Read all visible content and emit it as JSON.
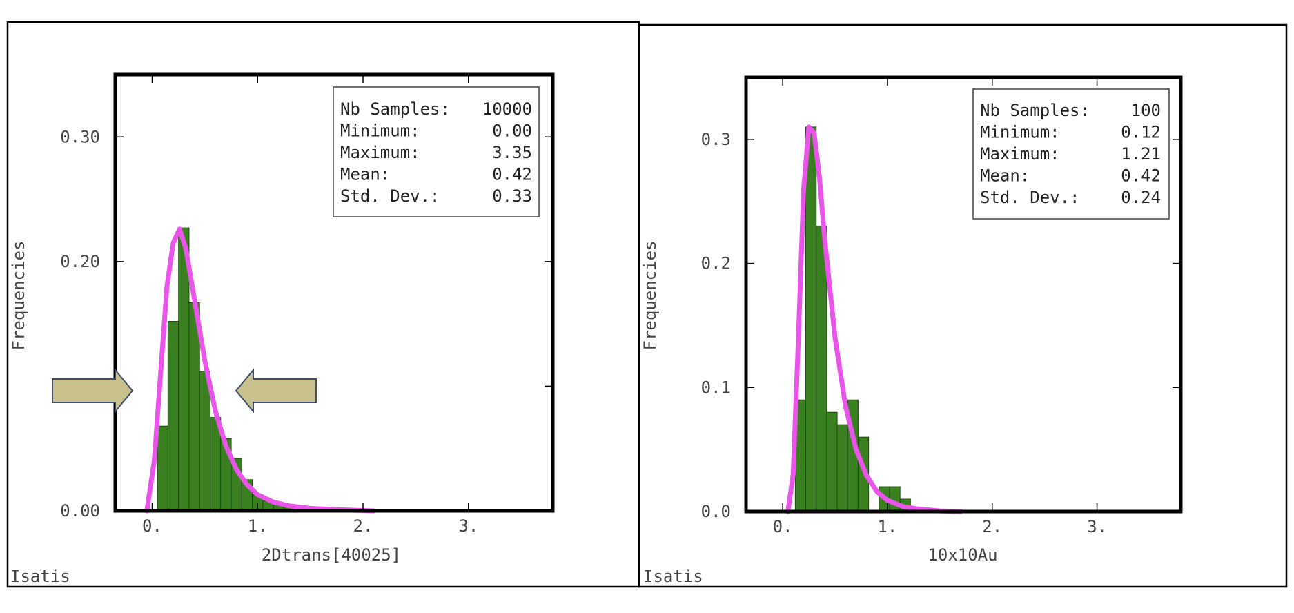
{
  "colors": {
    "bar": "#3a8020",
    "bar_edge": "#1d4a12",
    "curve": "#e855e8",
    "arrow": "#c8c18e",
    "arrow_edge": "#3f4f6a",
    "frame": "#000000"
  },
  "chart_data": [
    {
      "type": "bar",
      "title": "",
      "xlabel": "2Dtrans[40025]",
      "ylabel": "Frequencies",
      "brand": "Isatis",
      "xlim": [
        -0.35,
        3.8
      ],
      "ylim": [
        0,
        0.35
      ],
      "xticks": [
        0,
        1,
        2,
        3
      ],
      "xtick_labels": [
        "0.",
        "1.",
        "2.",
        "3."
      ],
      "yticks": [
        0,
        0.1,
        0.2,
        0.3
      ],
      "ytick_labels": [
        "0.00",
        "",
        "0.20",
        "0.30"
      ],
      "bin_width": 0.1,
      "bin_starts": [
        0.05,
        0.15,
        0.25,
        0.35,
        0.45,
        0.55,
        0.65,
        0.75,
        0.85,
        0.95,
        1.05,
        1.15,
        1.25
      ],
      "values": [
        0.068,
        0.152,
        0.227,
        0.167,
        0.112,
        0.075,
        0.058,
        0.042,
        0.025,
        0.013,
        0.008,
        0.005,
        0.005
      ],
      "fit_curve": {
        "x": [
          -0.05,
          0.02,
          0.08,
          0.14,
          0.2,
          0.26,
          0.32,
          0.4,
          0.5,
          0.6,
          0.7,
          0.8,
          0.9,
          1.0,
          1.15,
          1.3,
          1.5,
          1.75,
          2.1
        ],
        "y": [
          0.0,
          0.04,
          0.11,
          0.18,
          0.215,
          0.226,
          0.21,
          0.17,
          0.12,
          0.08,
          0.052,
          0.033,
          0.021,
          0.013,
          0.007,
          0.004,
          0.002,
          0.001,
          0.0
        ]
      },
      "stats": [
        {
          "label": "Nb Samples:",
          "value": "10000"
        },
        {
          "label": "Minimum:",
          "value": "0.00"
        },
        {
          "label": "Maximum:",
          "value": "3.35"
        },
        {
          "label": "Mean:",
          "value": "0.42"
        },
        {
          "label": "Std. Dev.:",
          "value": "0.33"
        }
      ],
      "annotations": [
        "left-pointing-arrow",
        "right-pointing-arrow"
      ]
    },
    {
      "type": "bar",
      "title": "",
      "xlabel": "10x10Au",
      "ylabel": "Frequencies",
      "brand": "Isatis",
      "xlim": [
        -0.35,
        3.8
      ],
      "ylim": [
        0,
        0.35
      ],
      "xticks": [
        0,
        1,
        2,
        3
      ],
      "xtick_labels": [
        "0.",
        "1.",
        "2.",
        "3."
      ],
      "yticks": [
        0,
        0.1,
        0.2,
        0.3
      ],
      "ytick_labels": [
        "0.0",
        "0.1",
        "0.2",
        "0.3"
      ],
      "bin_width": 0.1,
      "bin_starts": [
        0.12,
        0.22,
        0.32,
        0.42,
        0.52,
        0.62,
        0.72,
        0.82,
        0.92,
        1.02,
        1.12
      ],
      "values": [
        0.09,
        0.31,
        0.23,
        0.08,
        0.07,
        0.09,
        0.06,
        0.0,
        0.02,
        0.02,
        0.01
      ],
      "fit_curve": {
        "x": [
          0.05,
          0.1,
          0.15,
          0.2,
          0.25,
          0.3,
          0.35,
          0.4,
          0.5,
          0.6,
          0.7,
          0.8,
          0.9,
          1.0,
          1.15,
          1.3,
          1.5,
          1.7
        ],
        "y": [
          0.0,
          0.03,
          0.14,
          0.26,
          0.31,
          0.305,
          0.27,
          0.22,
          0.14,
          0.085,
          0.05,
          0.029,
          0.016,
          0.009,
          0.004,
          0.002,
          0.0005,
          0.0
        ]
      },
      "stats": [
        {
          "label": "Nb Samples:",
          "value": "100"
        },
        {
          "label": "Minimum:",
          "value": "0.12"
        },
        {
          "label": "Maximum:",
          "value": "1.21"
        },
        {
          "label": "Mean:",
          "value": "0.42"
        },
        {
          "label": "Std. Dev.:",
          "value": "0.24"
        }
      ]
    }
  ]
}
